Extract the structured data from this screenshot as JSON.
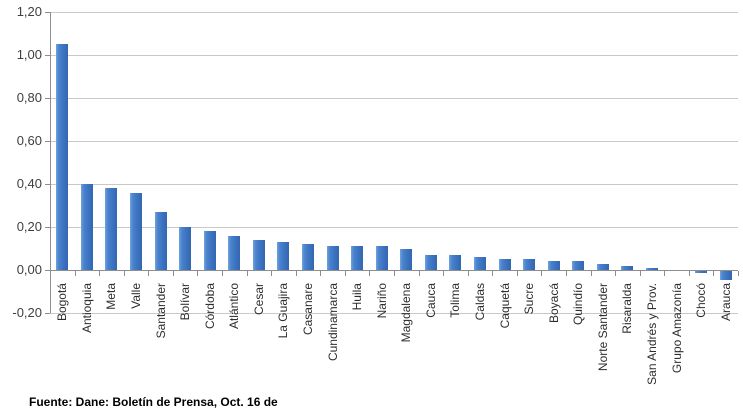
{
  "chart_data": {
    "type": "bar",
    "title": "",
    "xlabel": "",
    "ylabel": "",
    "categories": [
      "Bogotá",
      "Antioquia",
      "Meta",
      "Valle",
      "Santander",
      "Bolívar",
      "Córdoba",
      "Atlántico",
      "Cesar",
      "La Guajira",
      "Casanare",
      "Cundinamarca",
      "Huila",
      "Nariño",
      "Magdalena",
      "Cauca",
      "Tolima",
      "Caldas",
      "Caquetá",
      "Sucre",
      "Boyacá",
      "Quindío",
      "Norte Santander",
      "Risaralda",
      "San Andrés y Prov.",
      "Grupo Amazonía",
      "Chocó",
      "Arauca"
    ],
    "values": [
      1.05,
      0.4,
      0.38,
      0.36,
      0.27,
      0.2,
      0.18,
      0.16,
      0.14,
      0.13,
      0.12,
      0.11,
      0.11,
      0.11,
      0.1,
      0.07,
      0.07,
      0.06,
      0.05,
      0.05,
      0.04,
      0.04,
      0.03,
      0.02,
      0.01,
      0.0,
      -0.01,
      -0.04
    ],
    "ylim": [
      -0.2,
      1.2
    ],
    "ytick_step": 0.2,
    "ytick_labels": [
      "1,20",
      "1,00",
      "0,80",
      "0,60",
      "0,40",
      "0,20",
      "0,00",
      "-0,20"
    ],
    "grid": true,
    "legend": "none",
    "bar_color": "#3e79c8",
    "gridline_color": "#c9c9c9",
    "axis_color": "#8e8e8e",
    "source_note": "Fuente: Dane: Boletín de Prensa, Oct. 16 de"
  }
}
